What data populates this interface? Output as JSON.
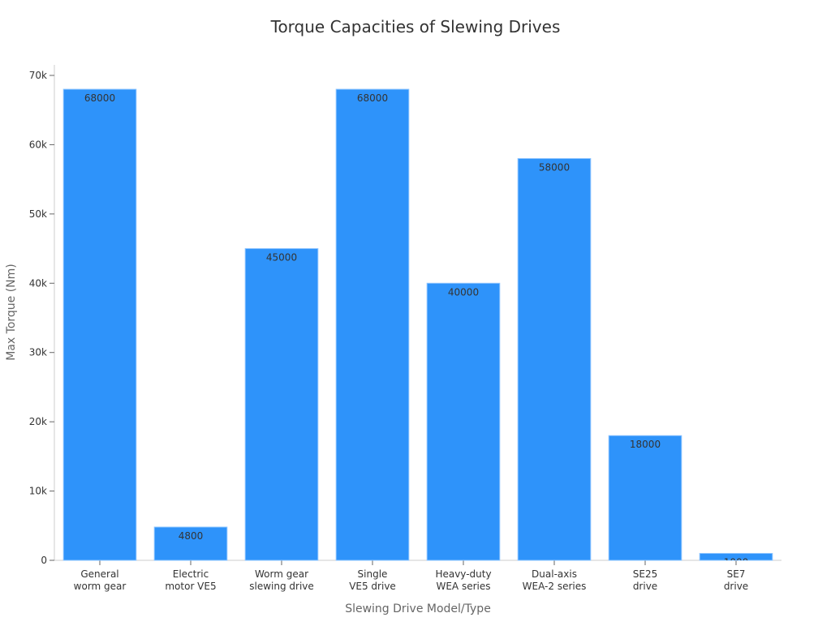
{
  "chart_data": {
    "type": "bar",
    "title": "Torque Capacities of Slewing Drives",
    "xlabel": "Slewing Drive Model/Type",
    "ylabel": "Max Torque (Nm)",
    "categories": [
      [
        "General",
        "worm gear"
      ],
      [
        "Electric",
        "motor VE5"
      ],
      [
        "Worm gear",
        "slewing drive"
      ],
      [
        "Single",
        "VE5 drive"
      ],
      [
        "Heavy-duty",
        "WEA series"
      ],
      [
        "Dual-axis",
        "WEA-2 series"
      ],
      [
        "SE25",
        "drive"
      ],
      [
        "SE7",
        "drive"
      ]
    ],
    "values": [
      68000,
      4800,
      45000,
      68000,
      40000,
      58000,
      18000,
      1000
    ],
    "ylim": [
      0,
      70000
    ],
    "yticks": [
      0,
      10000,
      20000,
      30000,
      40000,
      50000,
      60000,
      70000
    ],
    "ytick_labels": [
      "0",
      "10k",
      "20k",
      "30k",
      "40k",
      "50k",
      "60k",
      "70k"
    ],
    "grid": false,
    "bar_color": "#2e93fa",
    "data_labels": [
      "68000",
      "4800",
      "45000",
      "68000",
      "40000",
      "58000",
      "18000",
      "1000"
    ]
  }
}
